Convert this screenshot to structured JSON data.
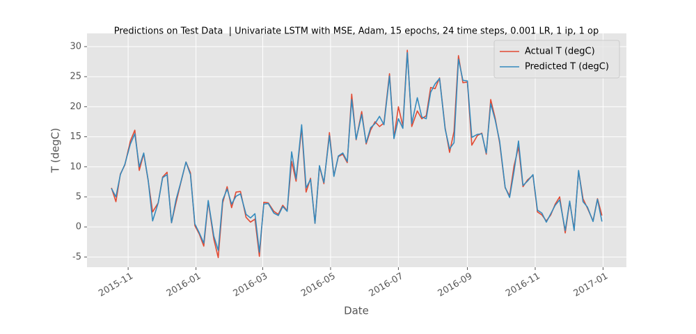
{
  "chart_data": {
    "type": "line",
    "title": "Predictions on Test Data  | Univariate LSTM with MSE, Adam, 15 epochs, 24 time steps, 0.001 LR, 1 ip, 1 op",
    "x_label": "Date",
    "y_label": "T (degC)",
    "x": [
      16725,
      16729,
      16733,
      16737,
      16742,
      16746,
      16750,
      16754,
      16758,
      16762,
      16767,
      16771,
      16775,
      16779,
      16783,
      16787,
      16792,
      16796,
      16800,
      16804,
      16808,
      16812,
      16817,
      16821,
      16825,
      16829,
      16833,
      16837,
      16841,
      16846,
      16850,
      16854,
      16858,
      16862,
      16866,
      16871,
      16875,
      16879,
      16883,
      16887,
      16891,
      16896,
      16900,
      16904,
      16908,
      16912,
      16916,
      16921,
      16925,
      16929,
      16933,
      16937,
      16941,
      16945,
      16950,
      16954,
      16958,
      16962,
      16966,
      16970,
      16975,
      16979,
      16983,
      16987,
      16991,
      16995,
      17000,
      17004,
      17008,
      17012,
      17016,
      17020,
      17025,
      17029,
      17033,
      17037,
      17041,
      17045,
      17049,
      17054,
      17058,
      17062,
      17066,
      17070,
      17074,
      17079,
      17083,
      17087,
      17091,
      17095,
      17099,
      17104,
      17108,
      17112,
      17116,
      17120,
      17124,
      17128,
      17133,
      17137,
      17141,
      17145,
      17149,
      17153,
      17158,
      17162,
      17166
    ],
    "series": [
      {
        "name": "Actual T (degC)",
        "color": "#E24A33",
        "values": [
          6.5,
          4.2,
          8.8,
          10.3,
          14.3,
          16.1,
          9.4,
          12.2,
          7.7,
          2.5,
          4.0,
          8.3,
          9.1,
          0.7,
          4.0,
          7.1,
          10.8,
          9.0,
          0.2,
          -1.2,
          -3.2,
          4.2,
          -2.0,
          -5.1,
          4.0,
          6.7,
          3.2,
          5.8,
          5.9,
          1.6,
          0.8,
          1.3,
          -4.9,
          4.1,
          4.0,
          2.6,
          2.1,
          3.6,
          2.7,
          10.9,
          7.6,
          16.5,
          5.8,
          8.1,
          0.6,
          10.1,
          7.2,
          15.7,
          8.5,
          11.7,
          12.1,
          10.7,
          22.1,
          14.5,
          19.2,
          13.8,
          16.1,
          17.5,
          16.7,
          17.3,
          25.5,
          14.8,
          20.0,
          16.8,
          29.4,
          16.7,
          19.3,
          18.0,
          18.5,
          23.2,
          23.0,
          24.8,
          16.5,
          12.4,
          15.9,
          28.5,
          24.0,
          24.1,
          13.6,
          15.2,
          15.6,
          12.1,
          21.2,
          18.1,
          14.0,
          6.5,
          5.2,
          10.2,
          13.3,
          6.7,
          7.8,
          8.6,
          2.5,
          2.0,
          1.0,
          2.0,
          3.8,
          5.0,
          -1.0,
          4.2,
          -0.4,
          9.3,
          4.7,
          3.1,
          1.0,
          4.7,
          1.9
        ]
      },
      {
        "name": "Predicted T (degC)",
        "color": "#348ABD",
        "values": [
          6.4,
          5.0,
          8.7,
          10.4,
          13.8,
          15.5,
          10.0,
          12.3,
          7.8,
          1.0,
          4.0,
          8.2,
          8.7,
          0.7,
          4.5,
          7.2,
          10.8,
          8.7,
          0.5,
          -1.0,
          -2.7,
          4.4,
          -1.5,
          -3.9,
          4.5,
          6.3,
          3.8,
          5.1,
          5.5,
          2.1,
          1.5,
          2.2,
          -4.2,
          3.8,
          3.9,
          2.3,
          1.9,
          3.4,
          2.6,
          12.5,
          8.0,
          17.0,
          6.5,
          7.9,
          0.6,
          10.2,
          7.4,
          15.2,
          8.4,
          11.8,
          12.3,
          10.9,
          21.2,
          14.6,
          18.7,
          14.0,
          16.5,
          17.2,
          18.4,
          17.0,
          25.1,
          14.7,
          18.0,
          16.4,
          29.0,
          17.2,
          21.5,
          18.3,
          18.0,
          22.4,
          23.8,
          24.7,
          16.3,
          13.0,
          14.0,
          27.9,
          24.4,
          24.3,
          14.9,
          15.4,
          15.5,
          12.3,
          20.5,
          17.8,
          14.3,
          6.6,
          4.9,
          9.3,
          14.3,
          6.9,
          7.6,
          8.7,
          2.8,
          2.3,
          0.8,
          2.2,
          3.6,
          4.5,
          -0.6,
          4.3,
          -0.6,
          9.4,
          4.2,
          3.3,
          0.9,
          4.6,
          0.9
        ]
      }
    ],
    "xlim": [
      16703,
      17188
    ],
    "xticks": [
      {
        "value": 16740,
        "label": "2015-11"
      },
      {
        "value": 16801,
        "label": "2016-01"
      },
      {
        "value": 16861,
        "label": "2016-03"
      },
      {
        "value": 16922,
        "label": "2016-05"
      },
      {
        "value": 16983,
        "label": "2016-07"
      },
      {
        "value": 17045,
        "label": "2016-09"
      },
      {
        "value": 17106,
        "label": "2016-11"
      },
      {
        "value": 17167,
        "label": "2017-01"
      }
    ],
    "ylim": [
      -6.7,
      32.2
    ],
    "yticks": [
      -5,
      0,
      5,
      10,
      15,
      20,
      25,
      30
    ],
    "grid": true,
    "legend": "upper right"
  }
}
